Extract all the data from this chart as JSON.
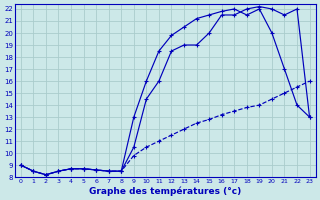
{
  "title": "Graphe des températures (°c)",
  "bg_color": "#cce8e8",
  "grid_color": "#aacccc",
  "line_color": "#0000bb",
  "xlim": [
    -0.5,
    23.5
  ],
  "ylim": [
    8,
    22.4
  ],
  "xticks": [
    0,
    1,
    2,
    3,
    4,
    5,
    6,
    7,
    8,
    9,
    10,
    11,
    12,
    13,
    14,
    15,
    16,
    17,
    18,
    19,
    20,
    21,
    22,
    23
  ],
  "yticks": [
    8,
    9,
    10,
    11,
    12,
    13,
    14,
    15,
    16,
    17,
    18,
    19,
    20,
    21,
    22
  ],
  "line_dashed": {
    "x": [
      0,
      1,
      2,
      3,
      4,
      5,
      6,
      7,
      8,
      9,
      10,
      11,
      12,
      13,
      14,
      15,
      16,
      17,
      18,
      19,
      20,
      21,
      22,
      23
    ],
    "y": [
      9.0,
      8.5,
      8.2,
      8.5,
      8.7,
      8.7,
      8.6,
      8.5,
      8.5,
      9.8,
      10.5,
      11.0,
      11.5,
      12.0,
      12.5,
      12.8,
      13.2,
      13.5,
      13.8,
      14.0,
      14.5,
      15.0,
      15.5,
      16.0
    ],
    "style": "--",
    "marker": "+"
  },
  "line_solid1": {
    "x": [
      0,
      1,
      2,
      3,
      4,
      5,
      6,
      7,
      8,
      9,
      10,
      11,
      12,
      13,
      14,
      15,
      16,
      17,
      18,
      19,
      20,
      21,
      22,
      23
    ],
    "y": [
      9.0,
      8.5,
      8.2,
      8.5,
      8.7,
      8.7,
      8.6,
      8.5,
      8.5,
      13.0,
      16.0,
      18.5,
      19.8,
      20.5,
      21.2,
      21.5,
      21.8,
      22.0,
      21.5,
      22.0,
      20.0,
      17.0,
      14.0,
      13.0
    ],
    "style": "-",
    "marker": "+"
  },
  "line_solid2": {
    "x": [
      0,
      1,
      2,
      3,
      4,
      5,
      6,
      7,
      8,
      9,
      10,
      11,
      12,
      13,
      14,
      15,
      16,
      17,
      18,
      19,
      20,
      21,
      22,
      23
    ],
    "y": [
      9.0,
      8.5,
      8.2,
      8.5,
      8.7,
      8.7,
      8.6,
      8.5,
      8.5,
      10.5,
      14.5,
      16.0,
      18.5,
      19.0,
      19.0,
      20.0,
      21.5,
      21.5,
      22.0,
      22.2,
      22.0,
      21.5,
      22.0,
      13.0
    ],
    "style": "-",
    "marker": "+"
  }
}
